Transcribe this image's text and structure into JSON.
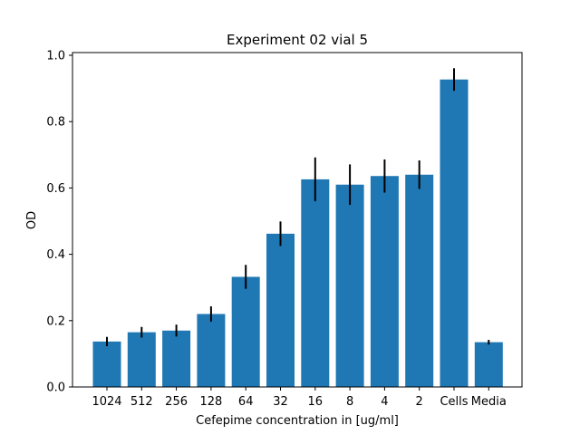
{
  "chart_data": {
    "type": "bar",
    "title": "Experiment 02 vial 5",
    "xlabel": "Cefepime concentration in [ug/ml]",
    "ylabel": "OD",
    "categories": [
      "1024",
      "512",
      "256",
      "128",
      "64",
      "32",
      "16",
      "8",
      "4",
      "2",
      "Cells",
      "Media"
    ],
    "values": [
      0.137,
      0.165,
      0.17,
      0.22,
      0.332,
      0.462,
      0.626,
      0.61,
      0.636,
      0.64,
      0.927,
      0.135
    ],
    "errors": [
      0.014,
      0.016,
      0.018,
      0.023,
      0.036,
      0.037,
      0.066,
      0.061,
      0.05,
      0.043,
      0.034,
      0.007
    ],
    "ylim": [
      0,
      1.0
    ],
    "yticks": [
      "0.0",
      "0.2",
      "0.4",
      "0.6",
      "0.8",
      "1.0"
    ],
    "grid": false,
    "bar_color": "#1f77b4",
    "error_color": "#000000"
  }
}
